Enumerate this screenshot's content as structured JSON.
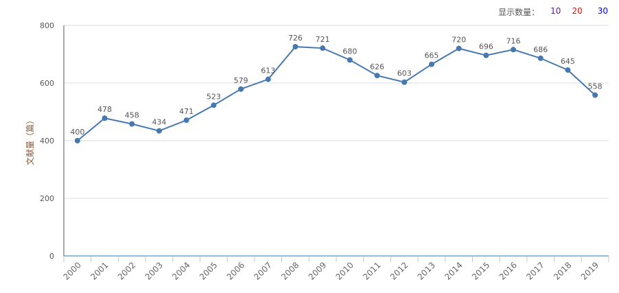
{
  "controls": {
    "label": "显示数量：",
    "options": [
      {
        "label": "10",
        "color": "#6a0dad"
      },
      {
        "label": "20",
        "color": "#ff0000"
      },
      {
        "label": "30",
        "color": "#0000cc"
      }
    ]
  },
  "chart_data": {
    "type": "line",
    "title": "",
    "xlabel": "",
    "ylabel": "文献量（篇）",
    "ylim": [
      0,
      800
    ],
    "yticks": [
      0,
      200,
      400,
      600,
      800
    ],
    "grid": true,
    "categories": [
      "2000",
      "2001",
      "2002",
      "2003",
      "2004",
      "2005",
      "2006",
      "2007",
      "2008",
      "2009",
      "2010",
      "2011",
      "2012",
      "2013",
      "2014",
      "2015",
      "2016",
      "2017",
      "2018",
      "2019"
    ],
    "series": [
      {
        "name": "文献量",
        "color": "#4579b0",
        "values": [
          400,
          478,
          458,
          434,
          471,
          523,
          579,
          613,
          726,
          721,
          680,
          626,
          603,
          665,
          720,
          696,
          716,
          686,
          645,
          558
        ]
      }
    ]
  }
}
